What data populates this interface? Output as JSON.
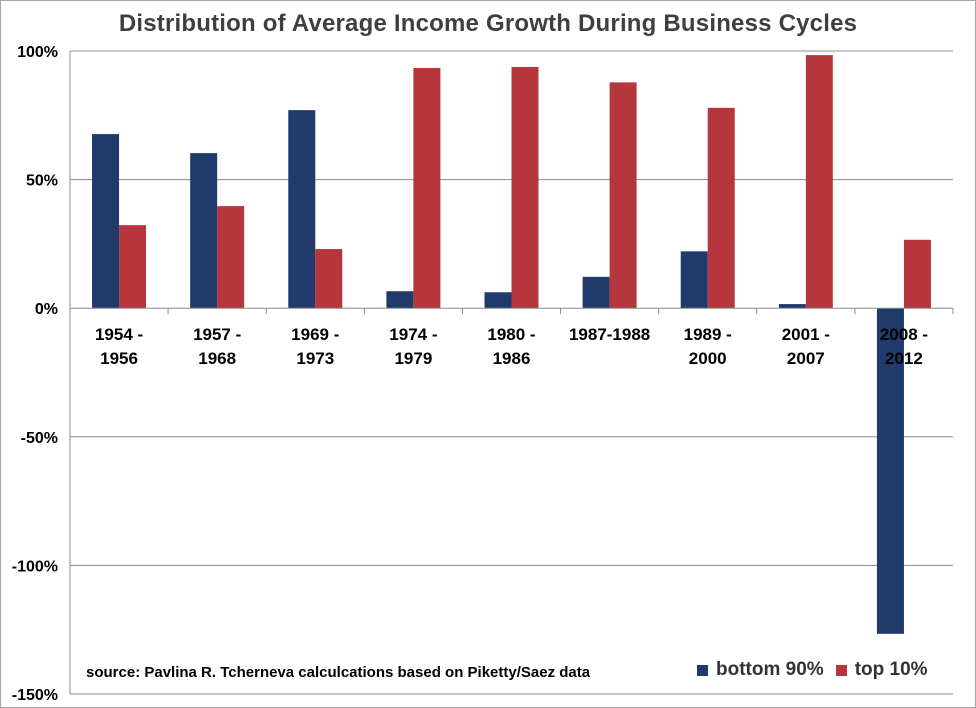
{
  "chart_data": {
    "type": "bar",
    "title": "Distribution of Average Income Growth During Business Cycles",
    "categories": [
      [
        "1954 -",
        "1956"
      ],
      [
        "1957 -",
        "1968"
      ],
      [
        "1969 -",
        "1973"
      ],
      [
        "1974 -",
        "1979"
      ],
      [
        "1980 -",
        "1986"
      ],
      [
        "1987-1988"
      ],
      [
        "1989 -",
        "2000"
      ],
      [
        "2001 -",
        "2007"
      ],
      [
        "2008 -",
        "2012"
      ]
    ],
    "series": [
      {
        "name": "bottom 90%",
        "color": "#1f3a6b",
        "values": [
          67.7,
          60.3,
          77.0,
          6.6,
          6.2,
          12.2,
          22.1,
          1.6,
          -126.6
        ]
      },
      {
        "name": "top 10%",
        "color": "#b5373d",
        "values": [
          32.3,
          39.7,
          23.0,
          93.4,
          93.8,
          87.8,
          77.9,
          98.4,
          26.6
        ]
      }
    ],
    "ylim": [
      -150,
      100
    ],
    "yticks": [
      {
        "value": 100,
        "label": "100%"
      },
      {
        "value": 50,
        "label": "50%"
      },
      {
        "value": 0,
        "label": "0%"
      },
      {
        "value": -50,
        "label": "-50%"
      },
      {
        "value": -100,
        "label": "-100%"
      },
      {
        "value": -150,
        "label": "-150%"
      }
    ],
    "grid": true,
    "legend_position": "bottom-right",
    "source": "source: Pavlina R. Tcherneva calculcations based on Piketty/Saez data"
  }
}
